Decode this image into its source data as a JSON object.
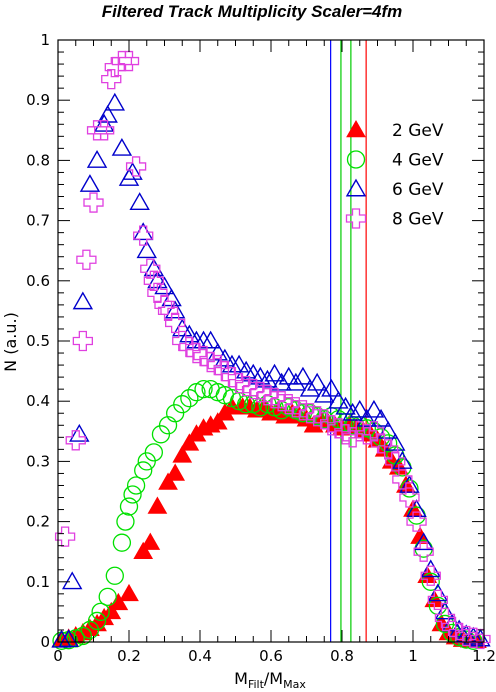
{
  "chart_data": {
    "type": "scatter",
    "title": "Filtered Track Multiplicity Scaler=4fm",
    "ylabel": "N (a.u.)",
    "xlabel": {
      "main": "M",
      "sub1": "Filt",
      "mid": "/M",
      "sub2": "Max"
    },
    "xlim": [
      0,
      1.2
    ],
    "ylim": [
      0,
      1
    ],
    "xticks": [
      "0",
      "0.2",
      "0.4",
      "0.6",
      "0.8",
      "1",
      "1.2"
    ],
    "yticks": [
      "0",
      "0.1",
      "0.2",
      "0.3",
      "0.4",
      "0.5",
      "0.6",
      "0.7",
      "0.8",
      "0.9",
      "1"
    ],
    "vlines": [
      {
        "x": 0.768,
        "color": "#0000ff"
      },
      {
        "x": 0.797,
        "color": "#00cc00"
      },
      {
        "x": 0.825,
        "color": "#00cc00"
      },
      {
        "x": 0.868,
        "color": "#ff0000"
      }
    ],
    "series": [
      {
        "name": "2 GeV",
        "marker": "triangle-filled",
        "color": "#ff0000",
        "points": [
          [
            0.01,
            0.004
          ],
          [
            0.03,
            0.006
          ],
          [
            0.05,
            0.01
          ],
          [
            0.07,
            0.015
          ],
          [
            0.09,
            0.022
          ],
          [
            0.11,
            0.03
          ],
          [
            0.13,
            0.04
          ],
          [
            0.15,
            0.05
          ],
          [
            0.17,
            0.065
          ],
          [
            0.2,
            0.08
          ],
          [
            0.24,
            0.15
          ],
          [
            0.26,
            0.165
          ],
          [
            0.28,
            0.225
          ],
          [
            0.31,
            0.265
          ],
          [
            0.33,
            0.28
          ],
          [
            0.35,
            0.31
          ],
          [
            0.37,
            0.33
          ],
          [
            0.39,
            0.345
          ],
          [
            0.41,
            0.355
          ],
          [
            0.43,
            0.36
          ],
          [
            0.45,
            0.365
          ],
          [
            0.47,
            0.38
          ],
          [
            0.49,
            0.39
          ],
          [
            0.52,
            0.39
          ],
          [
            0.54,
            0.39
          ],
          [
            0.56,
            0.385
          ],
          [
            0.58,
            0.39
          ],
          [
            0.6,
            0.38
          ],
          [
            0.62,
            0.385
          ],
          [
            0.64,
            0.375
          ],
          [
            0.66,
            0.38
          ],
          [
            0.68,
            0.375
          ],
          [
            0.7,
            0.37
          ],
          [
            0.72,
            0.36
          ],
          [
            0.74,
            0.37
          ],
          [
            0.76,
            0.365
          ],
          [
            0.78,
            0.36
          ],
          [
            0.8,
            0.355
          ],
          [
            0.82,
            0.36
          ],
          [
            0.84,
            0.355
          ],
          [
            0.86,
            0.35
          ],
          [
            0.88,
            0.345
          ],
          [
            0.9,
            0.335
          ],
          [
            0.92,
            0.32
          ],
          [
            0.94,
            0.3
          ],
          [
            0.96,
            0.29
          ],
          [
            0.98,
            0.26
          ],
          [
            1.0,
            0.22
          ],
          [
            1.02,
            0.175
          ],
          [
            1.04,
            0.11
          ],
          [
            1.06,
            0.07
          ],
          [
            1.08,
            0.03
          ],
          [
            1.1,
            0.015
          ],
          [
            1.12,
            0.008
          ],
          [
            1.14,
            0.004
          ],
          [
            1.16,
            0.003
          ],
          [
            1.18,
            0.002
          ]
        ]
      },
      {
        "name": "4 GeV",
        "marker": "circle-open",
        "color": "#00e000",
        "points": [
          [
            0.01,
            0.002
          ],
          [
            0.03,
            0.003
          ],
          [
            0.05,
            0.006
          ],
          [
            0.07,
            0.01
          ],
          [
            0.09,
            0.02
          ],
          [
            0.11,
            0.035
          ],
          [
            0.12,
            0.05
          ],
          [
            0.14,
            0.075
          ],
          [
            0.16,
            0.11
          ],
          [
            0.18,
            0.165
          ],
          [
            0.19,
            0.2
          ],
          [
            0.2,
            0.225
          ],
          [
            0.21,
            0.245
          ],
          [
            0.22,
            0.26
          ],
          [
            0.24,
            0.285
          ],
          [
            0.25,
            0.3
          ],
          [
            0.27,
            0.315
          ],
          [
            0.29,
            0.345
          ],
          [
            0.31,
            0.36
          ],
          [
            0.33,
            0.38
          ],
          [
            0.35,
            0.395
          ],
          [
            0.37,
            0.405
          ],
          [
            0.39,
            0.415
          ],
          [
            0.41,
            0.42
          ],
          [
            0.43,
            0.42
          ],
          [
            0.45,
            0.415
          ],
          [
            0.47,
            0.41
          ],
          [
            0.49,
            0.405
          ],
          [
            0.51,
            0.4
          ],
          [
            0.53,
            0.395
          ],
          [
            0.55,
            0.395
          ],
          [
            0.57,
            0.39
          ],
          [
            0.59,
            0.395
          ],
          [
            0.61,
            0.39
          ],
          [
            0.63,
            0.385
          ],
          [
            0.65,
            0.39
          ],
          [
            0.67,
            0.385
          ],
          [
            0.69,
            0.38
          ],
          [
            0.71,
            0.38
          ],
          [
            0.73,
            0.375
          ],
          [
            0.75,
            0.37
          ],
          [
            0.77,
            0.375
          ],
          [
            0.79,
            0.37
          ],
          [
            0.81,
            0.365
          ],
          [
            0.83,
            0.36
          ],
          [
            0.85,
            0.36
          ],
          [
            0.87,
            0.355
          ],
          [
            0.89,
            0.35
          ],
          [
            0.91,
            0.34
          ],
          [
            0.93,
            0.33
          ],
          [
            0.95,
            0.31
          ],
          [
            0.97,
            0.29
          ],
          [
            0.99,
            0.255
          ],
          [
            1.01,
            0.21
          ],
          [
            1.03,
            0.155
          ],
          [
            1.05,
            0.1
          ],
          [
            1.07,
            0.06
          ],
          [
            1.09,
            0.03
          ],
          [
            1.11,
            0.015
          ],
          [
            1.13,
            0.008
          ],
          [
            1.15,
            0.004
          ],
          [
            1.17,
            0.002
          ]
        ]
      },
      {
        "name": "6 GeV",
        "marker": "triangle-open",
        "color": "#0000cc",
        "points": [
          [
            0.01,
            0.003
          ],
          [
            0.03,
            0.004
          ],
          [
            0.04,
            0.1
          ],
          [
            0.06,
            0.345
          ],
          [
            0.07,
            0.565
          ],
          [
            0.09,
            0.76
          ],
          [
            0.11,
            0.8
          ],
          [
            0.13,
            0.86
          ],
          [
            0.14,
            0.875
          ],
          [
            0.16,
            0.895
          ],
          [
            0.18,
            0.82
          ],
          [
            0.2,
            0.77
          ],
          [
            0.21,
            0.78
          ],
          [
            0.23,
            0.73
          ],
          [
            0.24,
            0.68
          ],
          [
            0.25,
            0.65
          ],
          [
            0.27,
            0.62
          ],
          [
            0.28,
            0.6
          ],
          [
            0.3,
            0.59
          ],
          [
            0.32,
            0.57
          ],
          [
            0.33,
            0.55
          ],
          [
            0.35,
            0.52
          ],
          [
            0.37,
            0.51
          ],
          [
            0.39,
            0.5
          ],
          [
            0.41,
            0.5
          ],
          [
            0.43,
            0.5
          ],
          [
            0.45,
            0.48
          ],
          [
            0.47,
            0.47
          ],
          [
            0.49,
            0.46
          ],
          [
            0.51,
            0.46
          ],
          [
            0.53,
            0.45
          ],
          [
            0.55,
            0.445
          ],
          [
            0.57,
            0.44
          ],
          [
            0.59,
            0.435
          ],
          [
            0.61,
            0.445
          ],
          [
            0.63,
            0.43
          ],
          [
            0.65,
            0.44
          ],
          [
            0.67,
            0.43
          ],
          [
            0.69,
            0.44
          ],
          [
            0.71,
            0.42
          ],
          [
            0.73,
            0.43
          ],
          [
            0.75,
            0.41
          ],
          [
            0.77,
            0.42
          ],
          [
            0.79,
            0.4
          ],
          [
            0.81,
            0.39
          ],
          [
            0.83,
            0.38
          ],
          [
            0.85,
            0.385
          ],
          [
            0.87,
            0.37
          ],
          [
            0.89,
            0.385
          ],
          [
            0.91,
            0.37
          ],
          [
            0.93,
            0.35
          ],
          [
            0.95,
            0.33
          ],
          [
            0.97,
            0.3
          ],
          [
            0.99,
            0.26
          ],
          [
            1.01,
            0.22
          ],
          [
            1.03,
            0.165
          ],
          [
            1.05,
            0.12
          ],
          [
            1.07,
            0.08
          ],
          [
            1.09,
            0.05
          ],
          [
            1.11,
            0.03
          ],
          [
            1.13,
            0.02
          ],
          [
            1.15,
            0.012
          ],
          [
            1.17,
            0.008
          ],
          [
            1.19,
            0.005
          ]
        ]
      },
      {
        "name": "8 GeV",
        "marker": "cross-open",
        "color": "#e040e0",
        "points": [
          [
            0.02,
            0.175
          ],
          [
            0.05,
            0.335
          ],
          [
            0.07,
            0.5
          ],
          [
            0.08,
            0.635
          ],
          [
            0.1,
            0.73
          ],
          [
            0.11,
            0.85
          ],
          [
            0.13,
            0.85
          ],
          [
            0.15,
            0.935
          ],
          [
            0.16,
            0.955
          ],
          [
            0.18,
            0.965
          ],
          [
            0.2,
            0.965
          ],
          [
            0.22,
            0.79
          ],
          [
            0.24,
            0.675
          ],
          [
            0.26,
            0.62
          ],
          [
            0.27,
            0.6
          ],
          [
            0.28,
            0.58
          ],
          [
            0.3,
            0.56
          ],
          [
            0.31,
            0.55
          ],
          [
            0.33,
            0.53
          ],
          [
            0.35,
            0.5
          ],
          [
            0.37,
            0.49
          ],
          [
            0.39,
            0.48
          ],
          [
            0.41,
            0.475
          ],
          [
            0.43,
            0.465
          ],
          [
            0.45,
            0.46
          ],
          [
            0.47,
            0.45
          ],
          [
            0.49,
            0.44
          ],
          [
            0.51,
            0.43
          ],
          [
            0.53,
            0.425
          ],
          [
            0.55,
            0.42
          ],
          [
            0.57,
            0.415
          ],
          [
            0.59,
            0.41
          ],
          [
            0.61,
            0.405
          ],
          [
            0.63,
            0.4
          ],
          [
            0.65,
            0.395
          ],
          [
            0.67,
            0.39
          ],
          [
            0.69,
            0.385
          ],
          [
            0.71,
            0.38
          ],
          [
            0.73,
            0.375
          ],
          [
            0.75,
            0.37
          ],
          [
            0.77,
            0.36
          ],
          [
            0.79,
            0.355
          ],
          [
            0.81,
            0.345
          ],
          [
            0.83,
            0.34
          ],
          [
            0.85,
            0.35
          ],
          [
            0.87,
            0.345
          ],
          [
            0.89,
            0.35
          ],
          [
            0.91,
            0.33
          ],
          [
            0.93,
            0.32
          ],
          [
            0.95,
            0.3
          ],
          [
            0.97,
            0.27
          ],
          [
            0.99,
            0.24
          ],
          [
            1.01,
            0.2
          ],
          [
            1.03,
            0.15
          ],
          [
            1.05,
            0.11
          ],
          [
            1.07,
            0.07
          ],
          [
            1.09,
            0.04
          ],
          [
            1.11,
            0.025
          ],
          [
            1.13,
            0.015
          ],
          [
            1.15,
            0.01
          ],
          [
            1.17,
            0.007
          ],
          [
            1.19,
            0.005
          ]
        ]
      }
    ]
  }
}
